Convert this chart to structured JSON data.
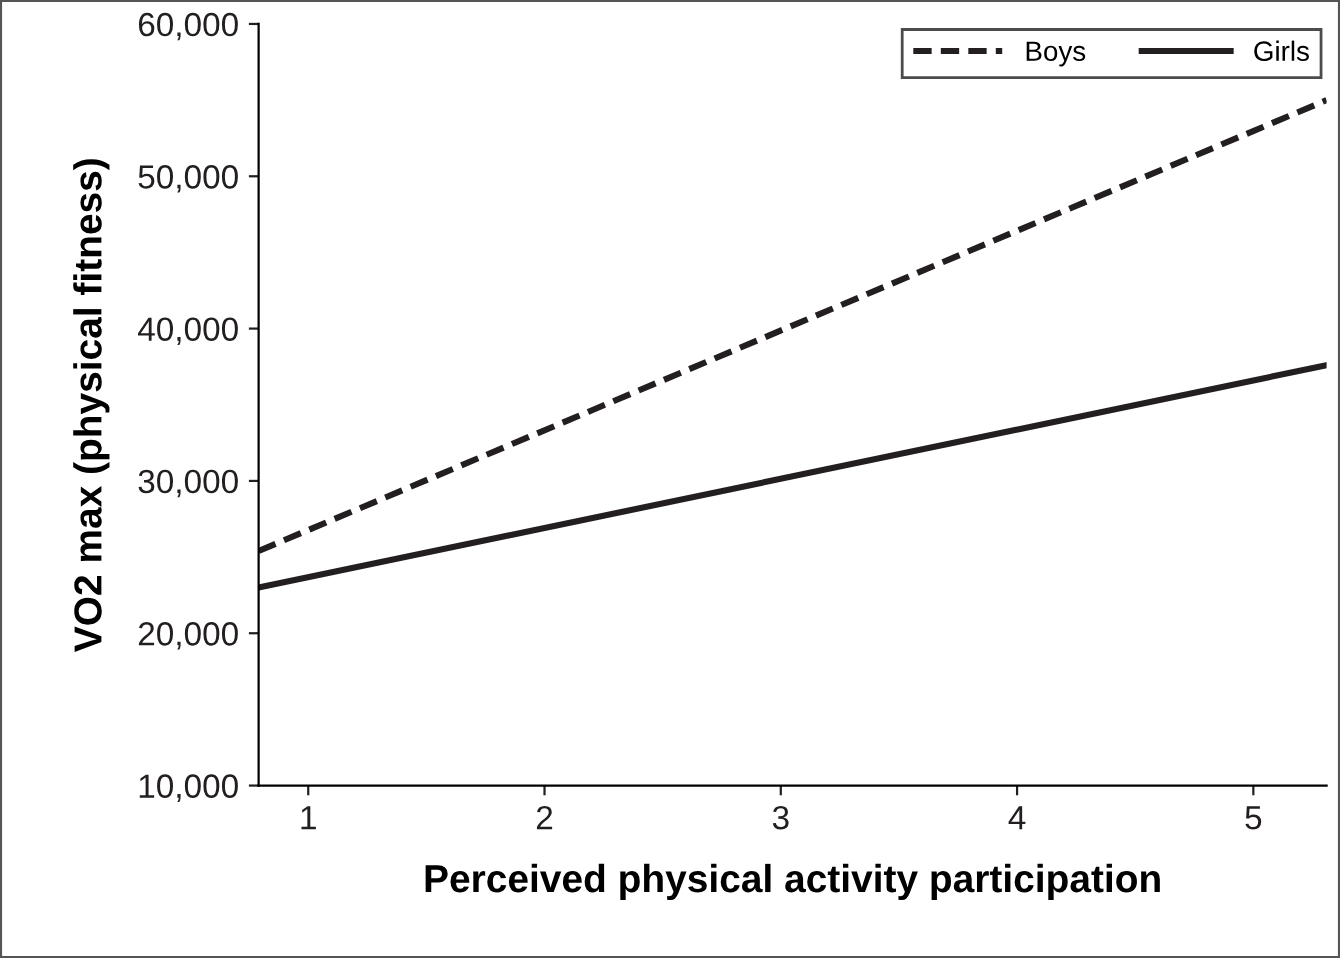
{
  "chart_data": {
    "type": "line",
    "xlabel": "Perceived physical activity participation",
    "ylabel": "VO2 max (physical fitness)",
    "xlim": [
      0.79,
      5.31
    ],
    "xticks": [
      1,
      2,
      3,
      4,
      5
    ],
    "ylim": [
      10000,
      60000
    ],
    "yticks": [
      {
        "value": 10000,
        "label": "10,000"
      },
      {
        "value": 20000,
        "label": "20,000"
      },
      {
        "value": 30000,
        "label": "30,000"
      },
      {
        "value": 40000,
        "label": "40,000"
      },
      {
        "value": 50000,
        "label": "50,000"
      },
      {
        "value": 60000,
        "label": "60,000"
      }
    ],
    "x": [
      0.79,
      5.31
    ],
    "series": [
      {
        "name": "Boys",
        "color": "#231f20",
        "values": [
          25400,
          55000
        ],
        "line_style": "dashed"
      },
      {
        "name": "Girls",
        "color": "#231f20",
        "values": [
          23000,
          37600
        ],
        "line_style": "solid"
      }
    ],
    "grid": false,
    "legend": "top right",
    "marker": "none"
  }
}
